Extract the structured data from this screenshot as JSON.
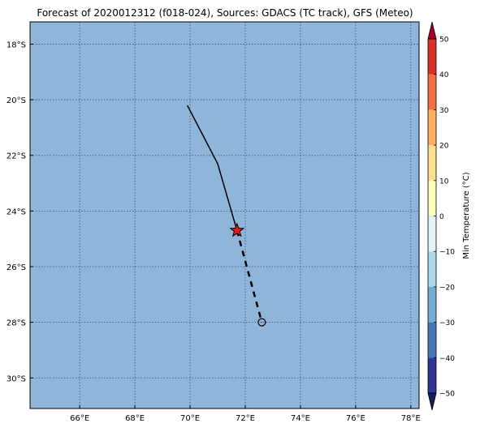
{
  "title": "Forecast of 2020012312 (f018-024), Sources: GDACS (TC track), GFS (Meteo)",
  "colors": {
    "ocean": "#8fb5da",
    "grid": "#3a4a66",
    "track": "#000000",
    "marker_fill": "#e31a1c"
  },
  "map": {
    "lon_range": [
      64.2,
      78.3
    ],
    "lat_range": [
      -31.1,
      -17.2
    ],
    "lon_ticks": [
      {
        "value": 66,
        "label": "66°E"
      },
      {
        "value": 68,
        "label": "68°E"
      },
      {
        "value": 70,
        "label": "70°E"
      },
      {
        "value": 72,
        "label": "72°E"
      },
      {
        "value": 74,
        "label": "74°E"
      },
      {
        "value": 76,
        "label": "76°E"
      },
      {
        "value": 78,
        "label": "78°E"
      }
    ],
    "lat_ticks": [
      {
        "value": -18,
        "label": "18°S"
      },
      {
        "value": -20,
        "label": "20°S"
      },
      {
        "value": -22,
        "label": "22°S"
      },
      {
        "value": -24,
        "label": "24°S"
      },
      {
        "value": -26,
        "label": "26°S"
      },
      {
        "value": -28,
        "label": "28°S"
      },
      {
        "value": -30,
        "label": "30°S"
      }
    ],
    "observed_track": [
      [
        69.9,
        -20.2
      ],
      [
        71.0,
        -22.3
      ],
      [
        71.7,
        -24.7
      ]
    ],
    "forecast_track": [
      [
        71.7,
        -24.7
      ],
      [
        72.6,
        -28.0
      ]
    ],
    "current_position": [
      71.7,
      -24.7
    ],
    "forecast_position": [
      72.6,
      -28.0
    ]
  },
  "colorbar": {
    "label": "Min Temperature (°C)",
    "min": -50,
    "max": 50,
    "tick_values": [
      -50,
      -40,
      -30,
      -20,
      -10,
      0,
      10,
      20,
      30,
      40,
      50
    ],
    "tick_labels": [
      "−50",
      "−40",
      "−30",
      "−20",
      "−10",
      "0",
      "10",
      "20",
      "30",
      "40",
      "50"
    ],
    "bins": [
      {
        "from": -50,
        "to": -40,
        "color": "#313695"
      },
      {
        "from": -40,
        "to": -30,
        "color": "#4575b4"
      },
      {
        "from": -30,
        "to": -20,
        "color": "#74add1"
      },
      {
        "from": -20,
        "to": -10,
        "color": "#abd9e9"
      },
      {
        "from": -10,
        "to": 0,
        "color": "#e0f3f8"
      },
      {
        "from": 0,
        "to": 10,
        "color": "#ffffbf"
      },
      {
        "from": 10,
        "to": 20,
        "color": "#fee090"
      },
      {
        "from": 20,
        "to": 30,
        "color": "#fdae61"
      },
      {
        "from": 30,
        "to": 40,
        "color": "#f46d43"
      },
      {
        "from": 40,
        "to": 50,
        "color": "#d73027"
      }
    ],
    "under_color": "#1a1f5c",
    "over_color": "#a50026"
  }
}
